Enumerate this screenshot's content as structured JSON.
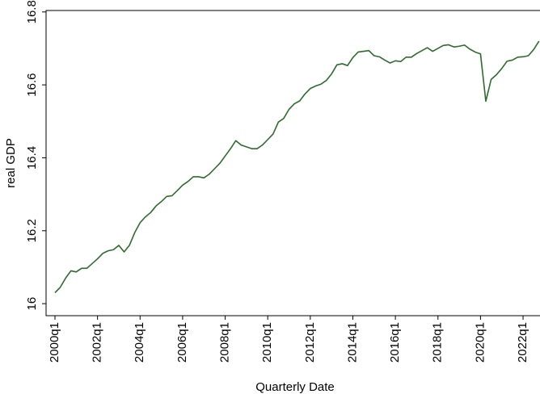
{
  "chart_data": {
    "type": "line",
    "x_label": "Quarterly Date",
    "y_label": "real GDP",
    "categories": [
      "2000q1",
      null,
      null,
      null,
      null,
      null,
      null,
      null,
      "2002q1",
      null,
      null,
      null,
      null,
      null,
      null,
      null,
      "2004q1",
      null,
      null,
      null,
      null,
      null,
      null,
      null,
      "2006q1",
      null,
      null,
      null,
      null,
      null,
      null,
      null,
      "2008q1",
      null,
      null,
      null,
      null,
      null,
      null,
      null,
      "2010q1",
      null,
      null,
      null,
      null,
      null,
      null,
      null,
      "2012q1",
      null,
      null,
      null,
      null,
      null,
      null,
      null,
      "2014q1",
      null,
      null,
      null,
      null,
      null,
      null,
      null,
      "2016q1",
      null,
      null,
      null,
      null,
      null,
      null,
      null,
      "2018q1",
      null,
      null,
      null,
      null,
      null,
      null,
      null,
      "2020q1",
      null,
      null,
      null,
      null,
      null,
      null,
      null,
      "2022q1",
      null,
      null,
      null
    ],
    "values": [
      16.03,
      16.045,
      16.07,
      16.09,
      16.087,
      16.097,
      16.097,
      16.11,
      16.123,
      16.138,
      16.145,
      16.148,
      16.16,
      16.142,
      16.16,
      16.195,
      16.222,
      16.238,
      16.25,
      16.268,
      16.28,
      16.294,
      16.296,
      16.31,
      16.325,
      16.335,
      16.348,
      16.348,
      16.345,
      16.355,
      16.37,
      16.385,
      16.405,
      16.425,
      16.447,
      16.435,
      16.43,
      16.425,
      16.425,
      16.435,
      16.45,
      16.465,
      16.498,
      16.508,
      16.533,
      16.548,
      16.556,
      16.575,
      16.59,
      16.597,
      16.602,
      16.612,
      16.63,
      16.655,
      16.658,
      16.653,
      16.675,
      16.69,
      16.692,
      16.694,
      16.68,
      16.677,
      16.668,
      16.66,
      16.666,
      16.664,
      16.676,
      16.676,
      16.686,
      16.694,
      16.702,
      16.692,
      16.7,
      16.708,
      16.71,
      16.704,
      16.706,
      16.709,
      16.698,
      16.69,
      16.685,
      16.555,
      16.615,
      16.628,
      16.645,
      16.665,
      16.668,
      16.676,
      16.677,
      16.68,
      16.697,
      16.72
    ],
    "color": "#2e6b2e",
    "ylim": [
      15.967,
      16.804
    ],
    "yticks": [
      16,
      16.2,
      16.4,
      16.6,
      16.8
    ]
  }
}
